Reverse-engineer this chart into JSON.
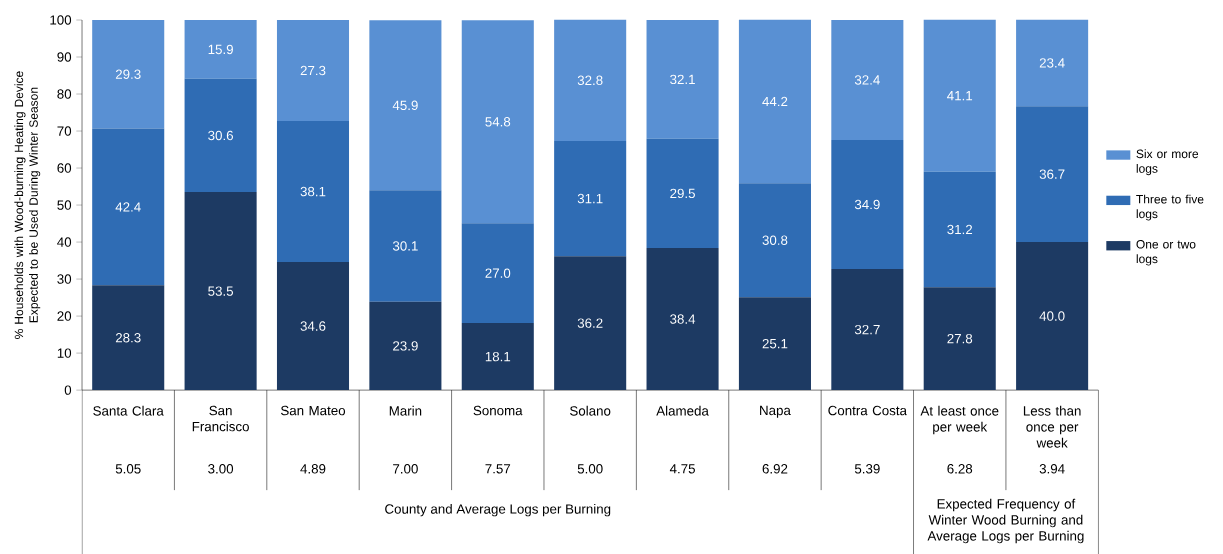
{
  "chart_data": {
    "type": "bar",
    "stacked": true,
    "ylabel": "% Households with Wood-burning Heating Device Expected to be Used During Winter Season",
    "categories": [
      "Santa Clara",
      "San Francisco",
      "San Mateo",
      "Marin",
      "Sonoma",
      "Solano",
      "Alameda",
      "Napa",
      "Contra Costa",
      "At least once per week",
      "Less than once per week"
    ],
    "series": [
      {
        "name": "One or two logs",
        "color": "#1d3a63",
        "values": [
          28.3,
          53.5,
          34.6,
          23.9,
          18.1,
          36.2,
          38.4,
          25.1,
          32.7,
          27.8,
          40.0
        ],
        "value_labels": [
          "28.3",
          "53.5",
          "34.6",
          "23.9",
          "18.1",
          "36.2",
          "38.4",
          "25.1",
          "32.7",
          "27.8",
          "40.0"
        ]
      },
      {
        "name": "Three to five logs",
        "color": "#2f6cb4",
        "values": [
          42.4,
          30.6,
          38.1,
          30.1,
          27.0,
          31.1,
          29.5,
          30.8,
          34.9,
          31.2,
          36.7
        ],
        "value_labels": [
          "42.4",
          "30.6",
          "38.1",
          "30.1",
          "27.0",
          "31.1",
          "29.5",
          "30.8",
          "34.9",
          "31.2",
          "36.7"
        ]
      },
      {
        "name": "Six or more logs",
        "color": "#5990d3",
        "values": [
          29.3,
          15.9,
          27.3,
          45.9,
          54.8,
          32.8,
          32.1,
          44.2,
          32.4,
          41.1,
          23.4
        ],
        "value_labels": [
          "29.3",
          "15.9",
          "27.3",
          "45.9",
          "54.8",
          "32.8",
          "32.1",
          "44.2",
          "32.4",
          "41.1",
          "23.4"
        ]
      }
    ],
    "ylim": [
      0,
      100
    ],
    "yticks": [
      0,
      10,
      20,
      30,
      40,
      50,
      60,
      70,
      80,
      90,
      100
    ],
    "legend": "right",
    "annotations": [
      "5.05",
      "3.00",
      "4.89",
      "7.00",
      "7.57",
      "5.00",
      "4.75",
      "6.92",
      "5.39",
      "6.28",
      "3.94",
      "County and Average Logs per Burning",
      "Expected Frequency of Winter Wood Burning and Average Logs per Burning"
    ]
  }
}
